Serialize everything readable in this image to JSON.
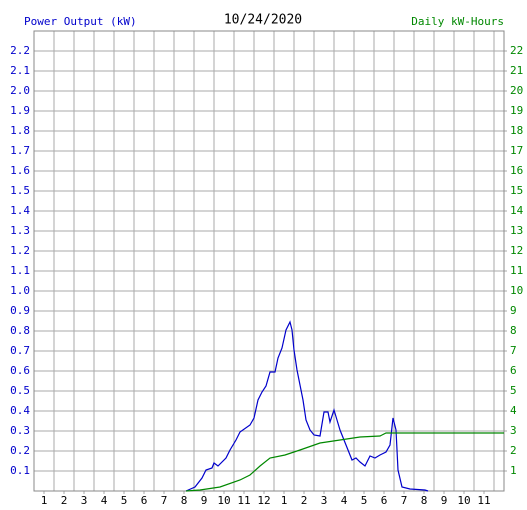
{
  "chart_data": {
    "type": "line",
    "title": "10/24/2020",
    "y_label": "Power Output (kW)",
    "y2_label": "Daily kW-Hours",
    "grid": true,
    "xlim": [
      0.5,
      24
    ],
    "xticks": [
      1,
      2,
      3,
      4,
      5,
      6,
      7,
      8,
      9,
      10,
      11,
      {
        "value": 12,
        "label": "12"
      },
      {
        "value": 13,
        "label": "1"
      },
      {
        "value": 14,
        "label": "2"
      },
      {
        "value": 15,
        "label": "3"
      },
      {
        "value": 16,
        "label": "4"
      },
      {
        "value": 17,
        "label": "5"
      },
      {
        "value": 18,
        "label": "6"
      },
      {
        "value": 19,
        "label": "7"
      },
      {
        "value": 20,
        "label": "8"
      },
      {
        "value": 21,
        "label": "9"
      },
      {
        "value": 22,
        "label": "10"
      },
      {
        "value": 23,
        "label": "11"
      }
    ],
    "ylim": [
      0,
      2.3
    ],
    "yticks": [
      0.1,
      0.2,
      0.3,
      0.4,
      0.5,
      0.6,
      0.7,
      0.8,
      0.9,
      {
        "value": 1,
        "label": "1.0"
      },
      1.1,
      1.2,
      1.3,
      1.4,
      1.5,
      1.6,
      1.7,
      1.8,
      1.9,
      {
        "value": 2,
        "label": "2.0"
      },
      2.1,
      2.2
    ],
    "y2lim": [
      0,
      23
    ],
    "y2ticks": [
      1,
      2,
      3,
      4,
      5,
      6,
      7,
      8,
      9,
      10,
      11,
      12,
      13,
      14,
      15,
      16,
      17,
      18,
      19,
      20,
      21,
      22
    ],
    "series": [
      {
        "name": "Power Output (kW)",
        "color": "#0000cc",
        "x": [
          8.1,
          8.55,
          8.9,
          9.1,
          9.4,
          9.5,
          9.7,
          10.1,
          10.3,
          10.6,
          10.8,
          11.3,
          11.5,
          11.7,
          11.9,
          12.1,
          12.3,
          12.55,
          12.7,
          12.9,
          13.1,
          13.3,
          13.4,
          13.5,
          13.65,
          13.8,
          13.95,
          14.1,
          14.3,
          14.5,
          14.8,
          15.0,
          15.2,
          15.3,
          15.5,
          15.65,
          15.8,
          16.0,
          16.2,
          16.4,
          16.6,
          16.8,
          17.05,
          17.3,
          17.55,
          17.8,
          18.1,
          18.3,
          18.45,
          18.6,
          18.7,
          18.9,
          19.3,
          20.05,
          20.2
        ],
        "values": [
          0,
          0.02,
          0.065,
          0.105,
          0.115,
          0.14,
          0.125,
          0.165,
          0.205,
          0.255,
          0.295,
          0.33,
          0.365,
          0.455,
          0.495,
          0.525,
          0.595,
          0.595,
          0.665,
          0.715,
          0.805,
          0.845,
          0.805,
          0.705,
          0.605,
          0.53,
          0.455,
          0.355,
          0.305,
          0.28,
          0.275,
          0.395,
          0.395,
          0.345,
          0.405,
          0.355,
          0.305,
          0.255,
          0.205,
          0.155,
          0.165,
          0.145,
          0.125,
          0.175,
          0.165,
          0.18,
          0.195,
          0.23,
          0.365,
          0.305,
          0.105,
          0.02,
          0.01,
          0.005,
          0
        ]
      },
      {
        "name": "Daily kW-Hours",
        "color": "#008800",
        "axis": "y2",
        "x": [
          8.1,
          8.8,
          9.8,
          10.8,
          11.3,
          11.8,
          12.3,
          13.05,
          13.8,
          14.8,
          15.8,
          16.8,
          17.8,
          18.1,
          18.55,
          24
        ],
        "values": [
          0,
          0.05,
          0.2,
          0.55,
          0.8,
          1.25,
          1.65,
          1.8,
          2.05,
          2.4,
          2.55,
          2.7,
          2.75,
          2.9,
          2.9,
          2.9
        ]
      }
    ]
  }
}
